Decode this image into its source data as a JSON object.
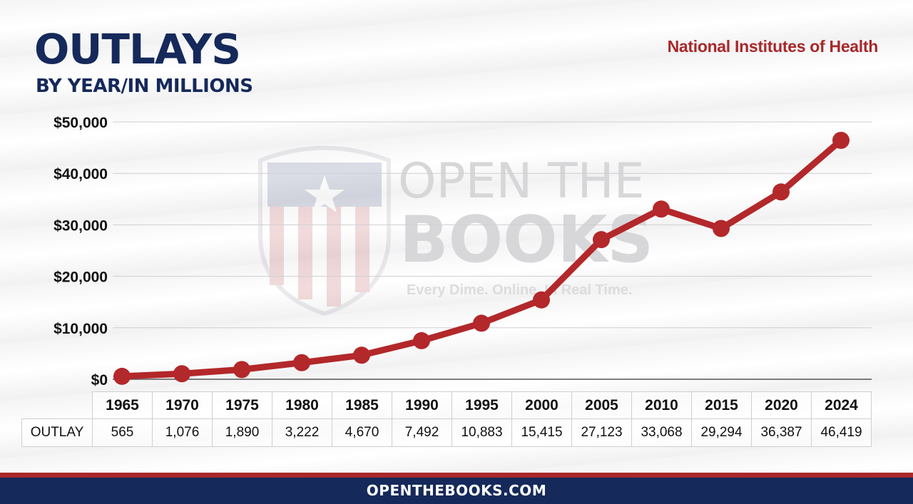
{
  "header": {
    "title": "OUTLAYS",
    "subtitle": "BY YEAR/IN MILLIONS",
    "agency": "National Institutes of Health"
  },
  "watermark": {
    "line1": "OPEN THE",
    "line2": "BOOKS",
    "tagline": "Every Dime. Online. In Real Time."
  },
  "table": {
    "row_label": "OUTLAY",
    "years": [
      "1965",
      "1970",
      "1975",
      "1980",
      "1985",
      "1990",
      "1995",
      "2000",
      "2005",
      "2010",
      "2015",
      "2020",
      "2024"
    ],
    "values": [
      "565",
      "1,076",
      "1,890",
      "3,222",
      "4,670",
      "7,492",
      "10,883",
      "15,415",
      "27,123",
      "33,068",
      "29,294",
      "36,387",
      "46,419"
    ]
  },
  "footer": {
    "text": "OPENTHEBOOKS.COM"
  },
  "colors": {
    "line": "#b3282a",
    "navy": "#15295a",
    "accent_red": "#a8282a"
  },
  "chart_data": {
    "type": "line",
    "categories": [
      "1965",
      "1970",
      "1975",
      "1980",
      "1985",
      "1990",
      "1995",
      "2000",
      "2005",
      "2010",
      "2015",
      "2020",
      "2024"
    ],
    "series": [
      {
        "values": [
          565,
          1076,
          1890,
          3222,
          4670,
          7492,
          10883,
          15415,
          27123,
          33068,
          29294,
          36387,
          46419
        ]
      }
    ],
    "title": "OUTLAYS",
    "subtitle": "BY YEAR/IN MILLIONS",
    "ylim": [
      0,
      50000
    ],
    "yticks": [
      "$0",
      "$10,000",
      "$20,000",
      "$30,000",
      "$40,000",
      "$50,000"
    ],
    "grid": true,
    "legend": "none"
  }
}
